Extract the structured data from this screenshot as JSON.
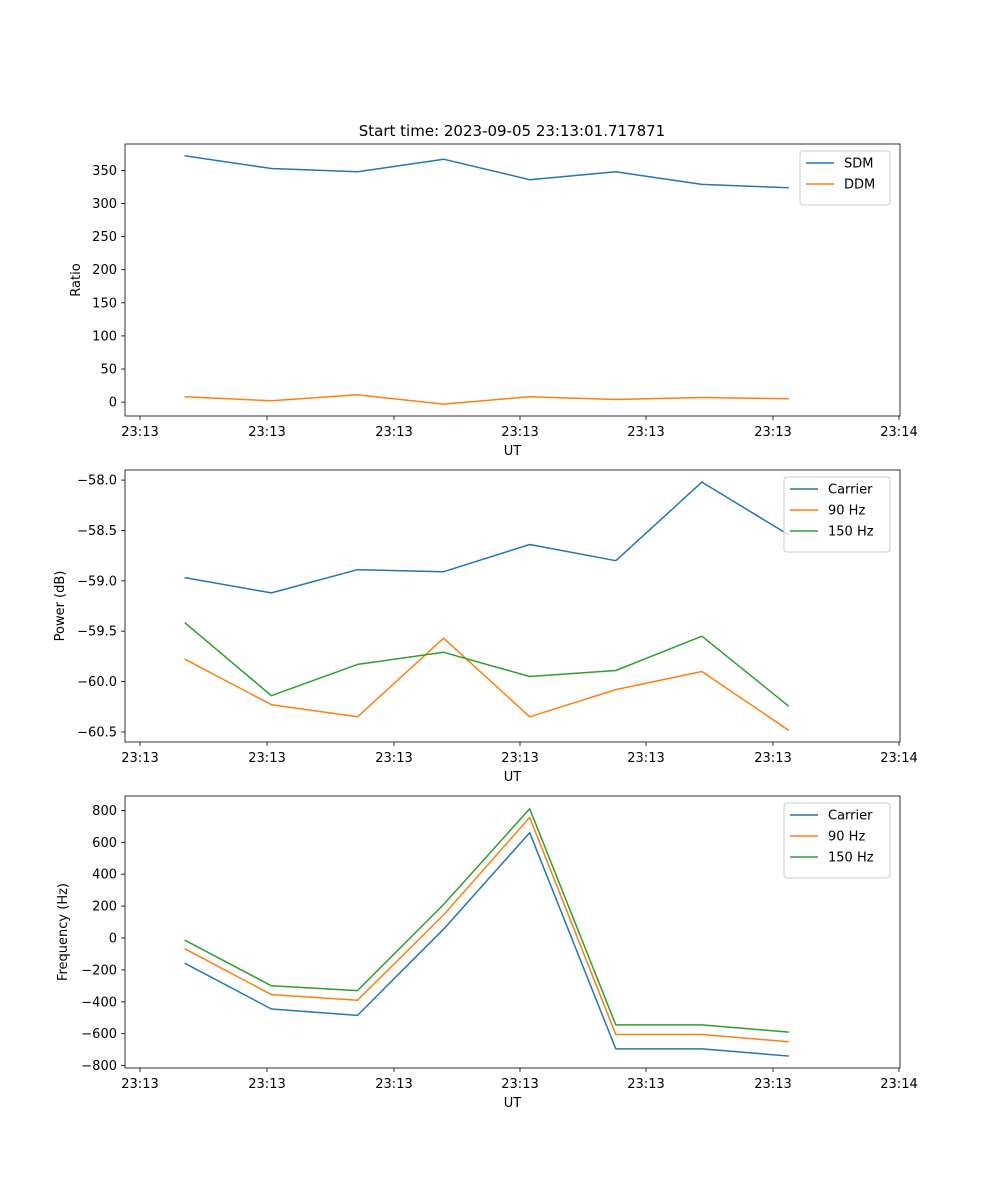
{
  "title": "Start time: 2023-09-05 23:13:01.717871",
  "chart_data": [
    {
      "type": "line",
      "xlabel": "UT",
      "ylabel": "Ratio",
      "xticks": [
        "23:13",
        "23:13",
        "23:13",
        "23:13",
        "23:13",
        "23:13",
        "23:14"
      ],
      "x": [
        1,
        2,
        3,
        4,
        5,
        6,
        7,
        8
      ],
      "xlim": [
        0.3,
        9.3
      ],
      "ylim": [
        -21,
        390
      ],
      "yticks": [
        0,
        50,
        100,
        150,
        200,
        250,
        300,
        350
      ],
      "legend_position": "top-right",
      "series": [
        {
          "name": "SDM",
          "color": "#1f77b4",
          "values": [
            372,
            353,
            348,
            367,
            336,
            348,
            329,
            324
          ]
        },
        {
          "name": "DDM",
          "color": "#ff7f0e",
          "values": [
            8,
            2,
            11,
            -3,
            8,
            4,
            7,
            5
          ]
        }
      ]
    },
    {
      "type": "line",
      "xlabel": "UT",
      "ylabel": "Power (dB)",
      "xticks": [
        "23:13",
        "23:13",
        "23:13",
        "23:13",
        "23:13",
        "23:13",
        "23:14"
      ],
      "x": [
        1,
        2,
        3,
        4,
        5,
        6,
        7,
        8
      ],
      "xlim": [
        0.3,
        9.3
      ],
      "ylim": [
        -60.6,
        -57.9
      ],
      "yticks": [
        -58.0,
        -58.5,
        -59.0,
        -59.5,
        -60.0,
        -60.5
      ],
      "ytick_labels": [
        "−58.0",
        "−58.5",
        "−59.0",
        "−59.5",
        "−60.0",
        "−60.5"
      ],
      "legend_position": "top-right",
      "series": [
        {
          "name": "Carrier",
          "color": "#1f77b4",
          "values": [
            -58.97,
            -59.12,
            -58.89,
            -58.91,
            -58.64,
            -58.8,
            -58.02,
            -58.54
          ]
        },
        {
          "name": "90 Hz",
          "color": "#ff7f0e",
          "values": [
            -59.78,
            -60.23,
            -60.35,
            -59.57,
            -60.35,
            -60.08,
            -59.9,
            -60.48
          ]
        },
        {
          "name": "150 Hz",
          "color": "#2ca02c",
          "values": [
            -59.42,
            -60.14,
            -59.83,
            -59.71,
            -59.95,
            -59.89,
            -59.55,
            -60.24
          ]
        }
      ]
    },
    {
      "type": "line",
      "xlabel": "UT",
      "ylabel": "Frequency (Hz)",
      "xticks": [
        "23:13",
        "23:13",
        "23:13",
        "23:13",
        "23:13",
        "23:13",
        "23:14"
      ],
      "x": [
        1,
        2,
        3,
        4,
        5,
        6,
        7,
        8
      ],
      "xlim": [
        0.3,
        9.3
      ],
      "ylim": [
        -815,
        890
      ],
      "yticks": [
        800,
        600,
        400,
        200,
        0,
        -200,
        -400,
        -600,
        -800
      ],
      "ytick_labels": [
        "800",
        "600",
        "400",
        "200",
        "0",
        "−200",
        "−400",
        "−600",
        "−800"
      ],
      "legend_position": "top-right",
      "series": [
        {
          "name": "Carrier",
          "color": "#1f77b4",
          "values": [
            -160,
            -445,
            -485,
            55,
            660,
            -695,
            -695,
            -740
          ]
        },
        {
          "name": "90 Hz",
          "color": "#ff7f0e",
          "values": [
            -70,
            -355,
            -390,
            145,
            755,
            -605,
            -605,
            -650
          ]
        },
        {
          "name": "150 Hz",
          "color": "#2ca02c",
          "values": [
            -15,
            -300,
            -330,
            210,
            810,
            -545,
            -545,
            -590
          ]
        }
      ]
    }
  ]
}
